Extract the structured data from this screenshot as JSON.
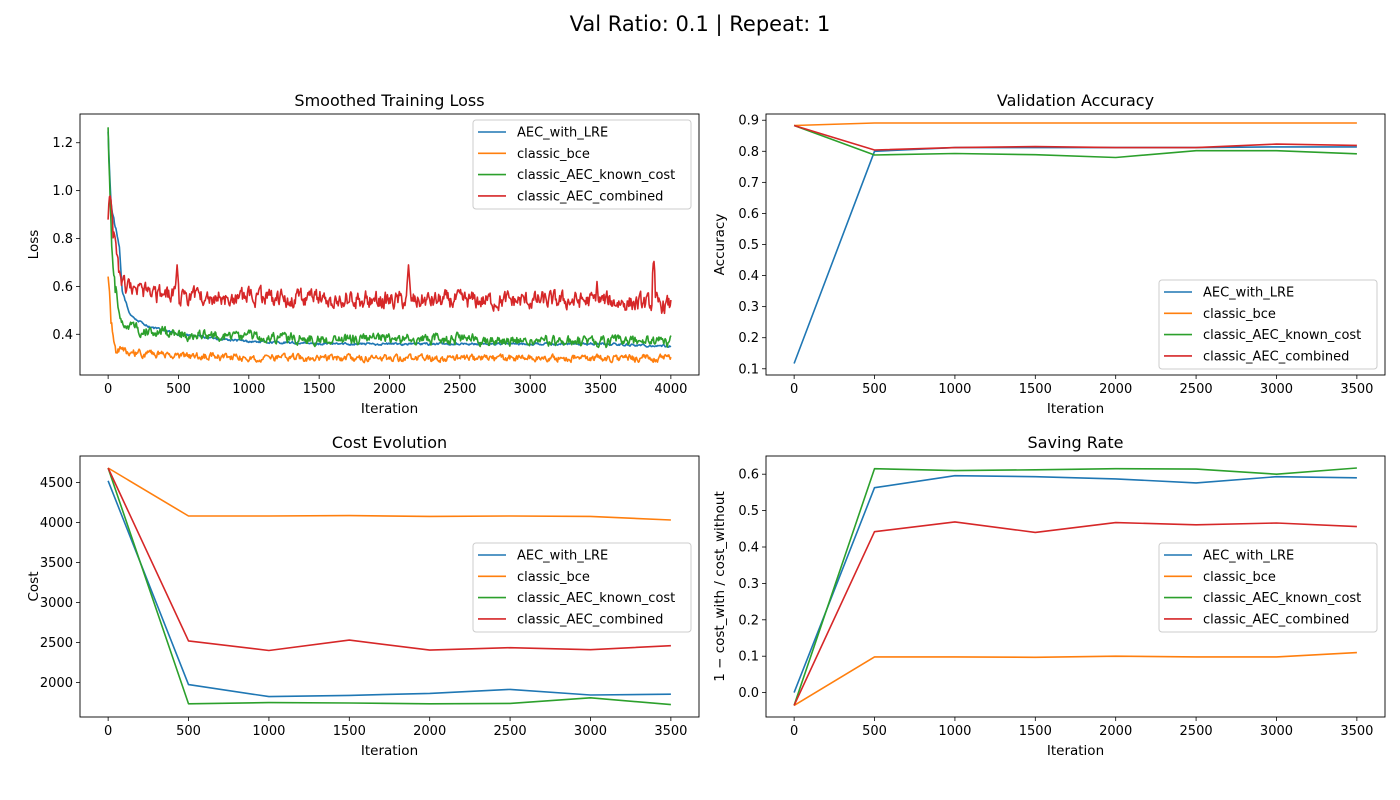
{
  "figure": {
    "title": "Val Ratio: 0.1 | Repeat: 1"
  },
  "colors": {
    "AEC_with_LRE": "#1f77b4",
    "classic_bce": "#ff7f0e",
    "classic_AEC_known_cost": "#2ca02c",
    "classic_AEC_combined": "#d62728"
  },
  "chart_data": [
    {
      "type": "line",
      "title": "Smoothed Training Loss",
      "xlabel": "Iteration",
      "ylabel": "Loss",
      "xlim": [
        -200,
        4200
      ],
      "ylim": [
        0.23,
        1.32
      ],
      "xticks": [
        0,
        500,
        1000,
        1500,
        2000,
        2500,
        3000,
        3500,
        4000
      ],
      "yticks": [
        0.4,
        0.6,
        0.8,
        1.0,
        1.2
      ],
      "ytick_labels": [
        "0.4",
        "0.6",
        "0.8",
        "1.0",
        "1.2"
      ],
      "legend": "upper right",
      "noisy": true,
      "series": [
        {
          "name": "AEC_with_LRE",
          "x": [
            0,
            20,
            40,
            60,
            80,
            100,
            150,
            200,
            300,
            500,
            800,
            1000,
            1500,
            2000,
            2500,
            3000,
            3500,
            4000
          ],
          "values": [
            1.24,
            0.95,
            0.88,
            0.82,
            0.76,
            0.58,
            0.49,
            0.46,
            0.43,
            0.4,
            0.38,
            0.37,
            0.36,
            0.36,
            0.36,
            0.36,
            0.36,
            0.35
          ],
          "noise": 0.004
        },
        {
          "name": "classic_bce",
          "x": [
            0,
            20,
            40,
            60,
            100,
            200,
            500,
            1000,
            1500,
            2000,
            2500,
            3000,
            3500,
            4000
          ],
          "values": [
            0.66,
            0.46,
            0.37,
            0.34,
            0.33,
            0.32,
            0.31,
            0.3,
            0.3,
            0.3,
            0.3,
            0.3,
            0.3,
            0.3
          ],
          "noise": 0.012
        },
        {
          "name": "classic_AEC_known_cost",
          "x": [
            0,
            10,
            30,
            60,
            100,
            200,
            500,
            1000,
            1500,
            2000,
            2500,
            3000,
            3500,
            4000
          ],
          "values": [
            1.27,
            1.05,
            0.72,
            0.55,
            0.45,
            0.42,
            0.4,
            0.39,
            0.38,
            0.38,
            0.38,
            0.37,
            0.37,
            0.37
          ],
          "noise": 0.018
        },
        {
          "name": "classic_AEC_combined",
          "x": [
            0,
            10,
            30,
            60,
            100,
            200,
            500,
            1000,
            1500,
            2000,
            2500,
            3000,
            3500,
            4000
          ],
          "values": [
            0.85,
            0.94,
            0.88,
            0.68,
            0.6,
            0.57,
            0.56,
            0.55,
            0.55,
            0.54,
            0.54,
            0.54,
            0.54,
            0.52
          ],
          "noise": 0.03,
          "spikes": [
            [
              490,
              0.69
            ],
            [
              2135,
              0.69
            ],
            [
              3878,
              0.72
            ],
            [
              3475,
              0.62
            ]
          ]
        }
      ]
    },
    {
      "type": "line",
      "title": "Validation Accuracy",
      "xlabel": "Iteration",
      "ylabel": "Accuracy",
      "xlim": [
        -175,
        3675
      ],
      "ylim": [
        0.08,
        0.92
      ],
      "xticks": [
        0,
        500,
        1000,
        1500,
        2000,
        2500,
        3000,
        3500
      ],
      "yticks": [
        0.1,
        0.2,
        0.3,
        0.4,
        0.5,
        0.6,
        0.7,
        0.8,
        0.9
      ],
      "ytick_labels": [
        "0.1",
        "0.2",
        "0.3",
        "0.4",
        "0.5",
        "0.6",
        "0.7",
        "0.8",
        "0.9"
      ],
      "legend": "lower right",
      "x": [
        0,
        500,
        1000,
        1500,
        2000,
        2500,
        3000,
        3500
      ],
      "series": [
        {
          "name": "AEC_with_LRE",
          "values": [
            0.117,
            0.8,
            0.812,
            0.812,
            0.812,
            0.812,
            0.814,
            0.814
          ]
        },
        {
          "name": "classic_bce",
          "values": [
            0.883,
            0.891,
            0.891,
            0.891,
            0.891,
            0.891,
            0.891,
            0.891
          ]
        },
        {
          "name": "classic_AEC_known_cost",
          "values": [
            0.883,
            0.788,
            0.793,
            0.789,
            0.78,
            0.802,
            0.802,
            0.792
          ]
        },
        {
          "name": "classic_AEC_combined",
          "values": [
            0.883,
            0.804,
            0.812,
            0.815,
            0.812,
            0.812,
            0.823,
            0.819
          ]
        }
      ]
    },
    {
      "type": "line",
      "title": "Cost Evolution",
      "xlabel": "Iteration",
      "ylabel": "Cost",
      "xlim": [
        -175,
        3675
      ],
      "ylim": [
        1570,
        4830
      ],
      "xticks": [
        0,
        500,
        1000,
        1500,
        2000,
        2500,
        3000,
        3500
      ],
      "yticks": [
        2000,
        2500,
        3000,
        3500,
        4000,
        4500
      ],
      "ytick_labels": [
        "2000",
        "2500",
        "3000",
        "3500",
        "4000",
        "4500"
      ],
      "legend": "center right",
      "x": [
        0,
        500,
        1000,
        1500,
        2000,
        2500,
        3000,
        3500
      ],
      "series": [
        {
          "name": "AEC_with_LRE",
          "values": [
            4520,
            1975,
            1825,
            1840,
            1865,
            1915,
            1845,
            1855
          ]
        },
        {
          "name": "classic_bce",
          "values": [
            4680,
            4080,
            4080,
            4085,
            4075,
            4080,
            4075,
            4030
          ]
        },
        {
          "name": "classic_AEC_known_cost",
          "values": [
            4680,
            1735,
            1750,
            1745,
            1735,
            1740,
            1810,
            1725
          ]
        },
        {
          "name": "classic_AEC_combined",
          "values": [
            4680,
            2520,
            2400,
            2530,
            2405,
            2435,
            2410,
            2460
          ]
        }
      ]
    },
    {
      "type": "line",
      "title": "Saving Rate",
      "xlabel": "Iteration",
      "ylabel": "1 − cost_with / cost_without",
      "xlim": [
        -175,
        3675
      ],
      "ylim": [
        -0.067,
        0.65
      ],
      "xticks": [
        0,
        500,
        1000,
        1500,
        2000,
        2500,
        3000,
        3500
      ],
      "yticks": [
        0.0,
        0.1,
        0.2,
        0.3,
        0.4,
        0.5,
        0.6
      ],
      "ytick_labels": [
        "0.0",
        "0.1",
        "0.2",
        "0.3",
        "0.4",
        "0.5",
        "0.6"
      ],
      "legend": "center right",
      "x": [
        0,
        500,
        1000,
        1500,
        2000,
        2500,
        3000,
        3500
      ],
      "series": [
        {
          "name": "AEC_with_LRE",
          "values": [
            0.0,
            0.563,
            0.596,
            0.593,
            0.587,
            0.576,
            0.593,
            0.59
          ]
        },
        {
          "name": "classic_bce",
          "values": [
            -0.035,
            0.098,
            0.098,
            0.097,
            0.1,
            0.098,
            0.098,
            0.11
          ]
        },
        {
          "name": "classic_AEC_known_cost",
          "values": [
            -0.035,
            0.615,
            0.61,
            0.612,
            0.615,
            0.614,
            0.6,
            0.617
          ]
        },
        {
          "name": "classic_AEC_combined",
          "values": [
            -0.035,
            0.442,
            0.469,
            0.44,
            0.467,
            0.461,
            0.466,
            0.456
          ]
        }
      ]
    }
  ]
}
